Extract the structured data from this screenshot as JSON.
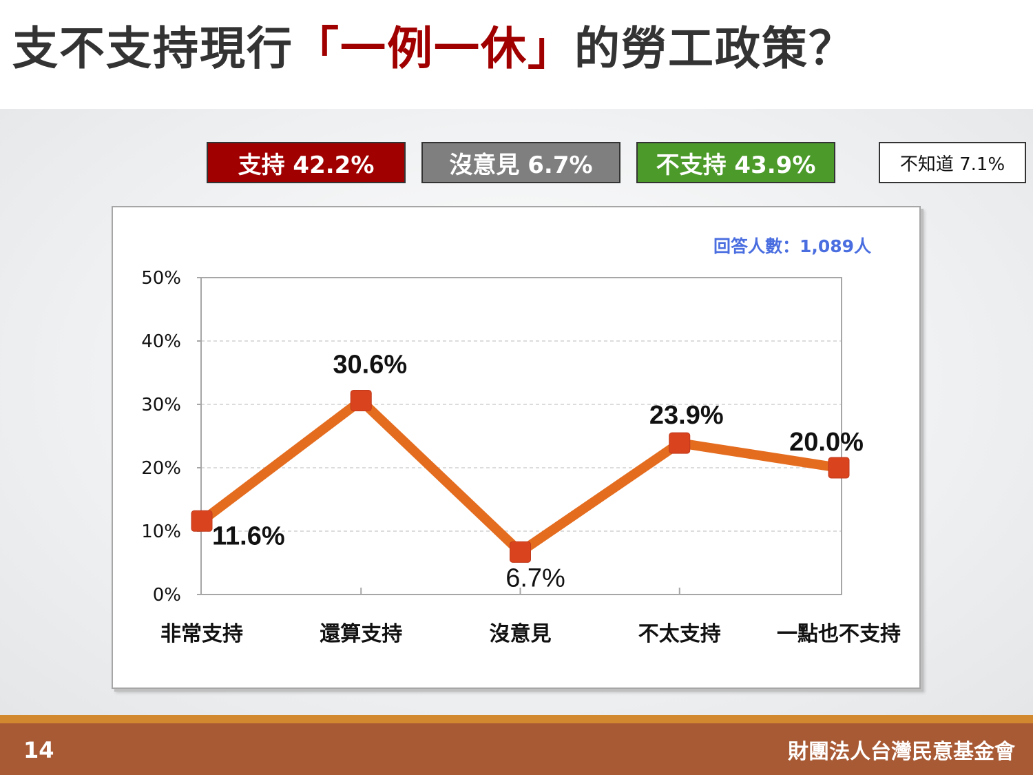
{
  "title": {
    "prefix": "支不支持現行",
    "highlight": "「一例一休」",
    "suffix": "的勞工政策？"
  },
  "summary": {
    "support": "支持 42.2%",
    "neutral": "沒意見 6.7%",
    "oppose": "不支持 43.9%",
    "unknown": "不知道 7.1%"
  },
  "respondents": "回答人數：1,089人",
  "footer": {
    "page_number": "14",
    "organization": "財團法人台灣民意基金會"
  },
  "colors": {
    "line": "#e46c1f",
    "marker": "#d9431e",
    "support": "#a00000",
    "neutral": "#7f7f7f",
    "oppose": "#4c9a2a"
  },
  "chart_data": {
    "type": "line",
    "categories": [
      "非常支持",
      "還算支持",
      "沒意見",
      "不太支持",
      "一點也不支持"
    ],
    "values": [
      11.6,
      30.6,
      6.7,
      23.9,
      20.0
    ],
    "value_labels": [
      "11.6%",
      "30.6%",
      "6.7%",
      "23.9%",
      "20.0%"
    ],
    "y_ticks": [
      "0%",
      "10%",
      "20%",
      "30%",
      "40%",
      "50%"
    ],
    "ylim": [
      0,
      50
    ],
    "grid": true,
    "legend": "none"
  }
}
